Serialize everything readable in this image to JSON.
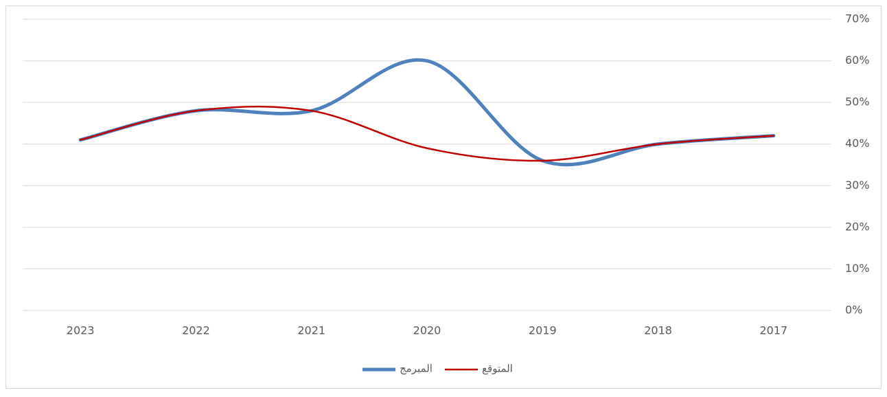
{
  "chart_data": {
    "type": "line",
    "categories": [
      "2017",
      "2018",
      "2019",
      "2020",
      "2021",
      "2022",
      "2023"
    ],
    "x_reversed": true,
    "series": [
      {
        "name": "المبرمج",
        "color": "#4f81bd",
        "values": [
          42,
          40,
          36,
          60,
          48,
          48,
          41
        ]
      },
      {
        "name": "المتوقع",
        "color": "#c00000",
        "values": [
          42,
          40,
          36,
          39,
          48,
          48,
          41
        ]
      }
    ],
    "ylim": [
      0,
      70
    ],
    "yticks": [
      {
        "value": 0,
        "label": "0%"
      },
      {
        "value": 10,
        "label": "10%"
      },
      {
        "value": 20,
        "label": "20%"
      },
      {
        "value": 30,
        "label": "30%"
      },
      {
        "value": 40,
        "label": "40%"
      },
      {
        "value": 50,
        "label": "50%"
      },
      {
        "value": 60,
        "label": "60%"
      },
      {
        "value": 70,
        "label": "70%"
      }
    ],
    "grid": true,
    "smooth": true,
    "legend": "bottom"
  }
}
